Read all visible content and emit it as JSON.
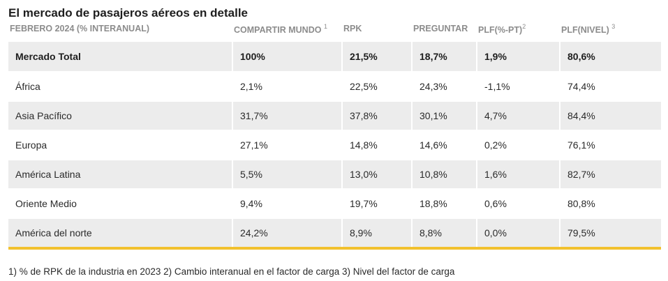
{
  "title": "El mercado de pasajeros aéreos en detalle",
  "table": {
    "headers": [
      {
        "label": "FEBRERO 2024 (% INTERANUAL)",
        "sup": ""
      },
      {
        "label": "COMPARTIR MUNDO",
        "sup": "1"
      },
      {
        "label": "RPK",
        "sup": ""
      },
      {
        "label": "PREGUNTAR",
        "sup": ""
      },
      {
        "label": "PLF(%-PT)",
        "sup": "2"
      },
      {
        "label": "PLF(NIVEL)",
        "sup": "3"
      }
    ],
    "rows": [
      [
        "Mercado Total",
        "100%",
        "21,5%",
        "18,7%",
        "1,9%",
        "80,6%"
      ],
      [
        "África",
        "2,1%",
        "22,5%",
        "24,3%",
        "-1,1%",
        "74,4%"
      ],
      [
        "Asia Pacífico",
        "31,7%",
        "37,8%",
        "30,1%",
        "4,7%",
        "84,4%"
      ],
      [
        "Europa",
        "27,1%",
        "14,8%",
        "14,6%",
        "0,2%",
        "76,1%"
      ],
      [
        "América Latina",
        "5,5%",
        "13,0%",
        "10,8%",
        "1,6%",
        "82,7%"
      ],
      [
        "Oriente Medio",
        "9,4%",
        "19,7%",
        "18,8%",
        "0,6%",
        "80,8%"
      ],
      [
        "América del norte",
        "24,2%",
        "8,9%",
        "8,8%",
        "0,0%",
        "79,5%"
      ]
    ]
  },
  "footnote": "1) % de RPK de la industria en 2023 2) Cambio interanual en el factor de carga 3) Nivel del factor de carga",
  "colors": {
    "accent": "#f2c12e",
    "shade": "#ececec",
    "header_text": "#8c8c8c"
  }
}
